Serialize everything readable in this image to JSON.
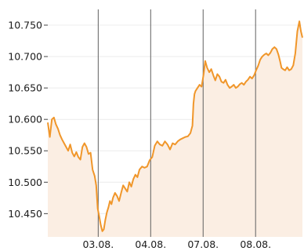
{
  "chart_data": {
    "type": "area",
    "title": "",
    "xlabel": "",
    "ylabel": "",
    "x_tick_labels": [
      "03.08.",
      "04.08.",
      "07.08.",
      "08.08."
    ],
    "y_tick_labels": [
      "10.750",
      "10.700",
      "10.650",
      "10.600",
      "10.550",
      "10.500",
      "10.450"
    ],
    "y_ticks": [
      10.75,
      10.7,
      10.65,
      10.6,
      10.55,
      10.5,
      10.45
    ],
    "ylim": [
      10.413,
      10.775
    ],
    "xlim": [
      0,
      100
    ],
    "x_tick_positions": [
      19.8,
      40.4,
      61.0,
      81.6
    ],
    "grid": "vertical",
    "legend": "none",
    "colors": {
      "line": "#f0962a",
      "fill": "#fbeee3",
      "grid": "#606060",
      "text": "#1c1c1c"
    },
    "series": [
      {
        "values": [
          [
            0.0,
            10.595
          ],
          [
            0.8,
            10.572
          ],
          [
            1.6,
            10.6
          ],
          [
            2.4,
            10.603
          ],
          [
            3.2,
            10.592
          ],
          [
            4.0,
            10.585
          ],
          [
            4.8,
            10.575
          ],
          [
            5.6,
            10.568
          ],
          [
            6.4,
            10.562
          ],
          [
            7.2,
            10.556
          ],
          [
            8.0,
            10.55
          ],
          [
            8.8,
            10.56
          ],
          [
            9.6,
            10.547
          ],
          [
            10.4,
            10.541
          ],
          [
            11.2,
            10.548
          ],
          [
            12.0,
            10.54
          ],
          [
            12.8,
            10.536
          ],
          [
            13.6,
            10.556
          ],
          [
            14.4,
            10.562
          ],
          [
            15.2,
            10.556
          ],
          [
            16.0,
            10.545
          ],
          [
            16.8,
            10.547
          ],
          [
            17.6,
            10.52
          ],
          [
            18.4,
            10.51
          ],
          [
            19.0,
            10.495
          ],
          [
            19.6,
            10.458
          ],
          [
            20.2,
            10.446
          ],
          [
            20.8,
            10.432
          ],
          [
            21.4,
            10.422
          ],
          [
            22.0,
            10.425
          ],
          [
            22.6,
            10.44
          ],
          [
            23.2,
            10.452
          ],
          [
            23.8,
            10.46
          ],
          [
            24.4,
            10.47
          ],
          [
            25.0,
            10.465
          ],
          [
            25.6,
            10.475
          ],
          [
            26.4,
            10.483
          ],
          [
            27.2,
            10.478
          ],
          [
            28.0,
            10.47
          ],
          [
            28.8,
            10.483
          ],
          [
            29.6,
            10.495
          ],
          [
            30.4,
            10.49
          ],
          [
            31.2,
            10.485
          ],
          [
            32.0,
            10.5
          ],
          [
            32.8,
            10.493
          ],
          [
            33.6,
            10.505
          ],
          [
            34.4,
            10.512
          ],
          [
            35.2,
            10.508
          ],
          [
            36.0,
            10.52
          ],
          [
            37.0,
            10.525
          ],
          [
            38.0,
            10.523
          ],
          [
            39.0,
            10.525
          ],
          [
            40.0,
            10.535
          ],
          [
            41.0,
            10.54
          ],
          [
            42.0,
            10.558
          ],
          [
            43.0,
            10.565
          ],
          [
            44.0,
            10.56
          ],
          [
            45.0,
            10.558
          ],
          [
            46.0,
            10.565
          ],
          [
            47.0,
            10.56
          ],
          [
            48.0,
            10.552
          ],
          [
            49.0,
            10.562
          ],
          [
            50.0,
            10.56
          ],
          [
            51.0,
            10.565
          ],
          [
            52.0,
            10.568
          ],
          [
            53.0,
            10.57
          ],
          [
            54.0,
            10.572
          ],
          [
            55.0,
            10.573
          ],
          [
            56.0,
            10.578
          ],
          [
            56.8,
            10.59
          ],
          [
            57.2,
            10.625
          ],
          [
            57.6,
            10.64
          ],
          [
            58.0,
            10.645
          ],
          [
            58.8,
            10.65
          ],
          [
            59.6,
            10.655
          ],
          [
            60.4,
            10.652
          ],
          [
            61.2,
            10.672
          ],
          [
            61.8,
            10.693
          ],
          [
            62.6,
            10.682
          ],
          [
            63.4,
            10.675
          ],
          [
            64.2,
            10.68
          ],
          [
            65.0,
            10.67
          ],
          [
            65.8,
            10.662
          ],
          [
            66.6,
            10.672
          ],
          [
            67.4,
            10.668
          ],
          [
            68.2,
            10.66
          ],
          [
            69.0,
            10.658
          ],
          [
            69.8,
            10.663
          ],
          [
            70.6,
            10.655
          ],
          [
            71.4,
            10.65
          ],
          [
            72.2,
            10.652
          ],
          [
            73.0,
            10.655
          ],
          [
            73.8,
            10.65
          ],
          [
            74.6,
            10.652
          ],
          [
            75.4,
            10.656
          ],
          [
            76.2,
            10.658
          ],
          [
            77.0,
            10.655
          ],
          [
            77.8,
            10.66
          ],
          [
            78.6,
            10.663
          ],
          [
            79.4,
            10.668
          ],
          [
            80.2,
            10.665
          ],
          [
            81.0,
            10.67
          ],
          [
            81.8,
            10.678
          ],
          [
            82.6,
            10.685
          ],
          [
            83.4,
            10.695
          ],
          [
            84.2,
            10.7
          ],
          [
            85.0,
            10.703
          ],
          [
            85.8,
            10.705
          ],
          [
            86.6,
            10.702
          ],
          [
            87.4,
            10.706
          ],
          [
            88.2,
            10.712
          ],
          [
            89.0,
            10.715
          ],
          [
            89.8,
            10.712
          ],
          [
            90.6,
            10.703
          ],
          [
            91.2,
            10.693
          ],
          [
            91.8,
            10.682
          ],
          [
            92.4,
            10.68
          ],
          [
            93.2,
            10.678
          ],
          [
            94.0,
            10.683
          ],
          [
            94.8,
            10.678
          ],
          [
            95.6,
            10.68
          ],
          [
            96.4,
            10.686
          ],
          [
            97.2,
            10.705
          ],
          [
            98.0,
            10.74
          ],
          [
            98.8,
            10.756
          ],
          [
            99.4,
            10.74
          ],
          [
            100.0,
            10.73
          ]
        ]
      }
    ]
  }
}
